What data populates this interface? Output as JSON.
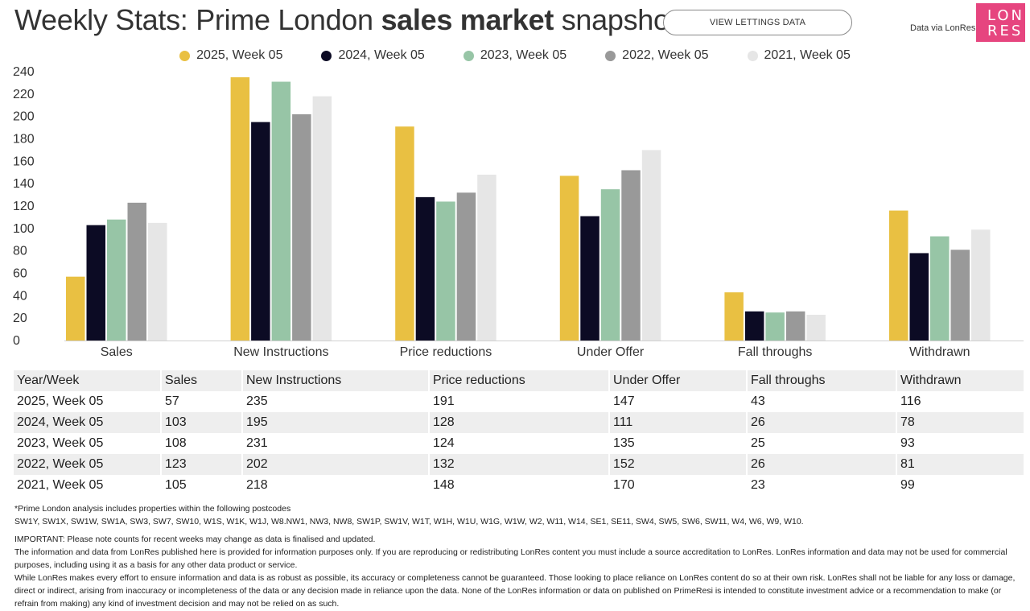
{
  "header": {
    "title_prefix": "Weekly Stats: Prime London ",
    "title_bold": "sales market",
    "title_suffix": " snapshot",
    "lettings_button": "VIEW LETTINGS DATA",
    "data_via": "Data via LonRes",
    "logo_line1": "LON",
    "logo_line2": "RES"
  },
  "chart_data": {
    "type": "bar",
    "categories": [
      "Sales",
      "New Instructions",
      "Price reductions",
      "Under Offer",
      "Fall throughs",
      "Withdrawn"
    ],
    "series": [
      {
        "name": "2025, Week 05",
        "color": "#e9c042",
        "values": [
          57,
          235,
          191,
          147,
          43,
          116
        ]
      },
      {
        "name": "2024, Week 05",
        "color": "#0c0b24",
        "values": [
          103,
          195,
          128,
          111,
          26,
          78
        ]
      },
      {
        "name": "2023, Week 05",
        "color": "#97c5a6",
        "values": [
          108,
          231,
          124,
          135,
          25,
          93
        ]
      },
      {
        "name": "2022, Week 05",
        "color": "#999999",
        "values": [
          123,
          202,
          132,
          152,
          26,
          81
        ]
      },
      {
        "name": "2021, Week 05",
        "color": "#e6e6e6",
        "values": [
          105,
          218,
          148,
          170,
          23,
          99
        ]
      }
    ],
    "yticks": [
      0,
      20,
      40,
      60,
      80,
      100,
      120,
      140,
      160,
      180,
      200,
      220,
      240
    ],
    "ylim": [
      0,
      240
    ],
    "legend_position": "top-center",
    "grid": false
  },
  "table": {
    "headers": [
      "Year/Week",
      "Sales",
      "New Instructions",
      "Price reductions",
      "Under Offer",
      "Fall throughs",
      "Withdrawn"
    ],
    "rows": [
      [
        "2025, Week 05",
        "57",
        "235",
        "191",
        "147",
        "43",
        "116"
      ],
      [
        "2024, Week 05",
        "103",
        "195",
        "128",
        "111",
        "26",
        "78"
      ],
      [
        "2023, Week 05",
        "108",
        "231",
        "124",
        "135",
        "25",
        "93"
      ],
      [
        "2022, Week 05",
        "123",
        "202",
        "132",
        "152",
        "26",
        "81"
      ],
      [
        "2021, Week 05",
        "105",
        "218",
        "148",
        "170",
        "23",
        "99"
      ]
    ]
  },
  "notes": {
    "postcodes_intro": "*Prime London analysis includes properties within the following postcodes",
    "postcodes": "SW1Y, SW1X, SW1W, SW1A, SW3, SW7, SW10, W1S, W1K, W1J, W8.NW1, NW3, NW8, SW1P, SW1V, W1T, W1H, W1U, W1G, W1W, W2, W11, W14, SE1, SE11, SW4, SW5, SW6, SW11, W4, W6, W9, W10.",
    "important": "IMPORTANT: Please note counts for recent weeks may change as data is finalised and updated.",
    "disclaimer1": "The information and data from LonRes published here is provided for information purposes only. If you are reproducing or redistributing LonRes content you must include a source accreditation to LonRes. LonRes information and data may not be used for commercial purposes, including using it as a basis for any other data product or service.",
    "disclaimer2": "While LonRes makes every effort to ensure information and data is as robust as possible, its accuracy or completeness cannot be guaranteed. Those looking to place reliance on LonRes content do so at their own risk. LonRes shall not be liable for any loss or damage, direct or indirect, arising from inaccuracy or incompleteness of the data or any decision made in reliance upon the data. None of the LonRes information or data on published on PrimeResi is intended to constitute investment advice or a recommendation to make (or refrain from making) any kind of investment decision and may not be relied on as such."
  }
}
